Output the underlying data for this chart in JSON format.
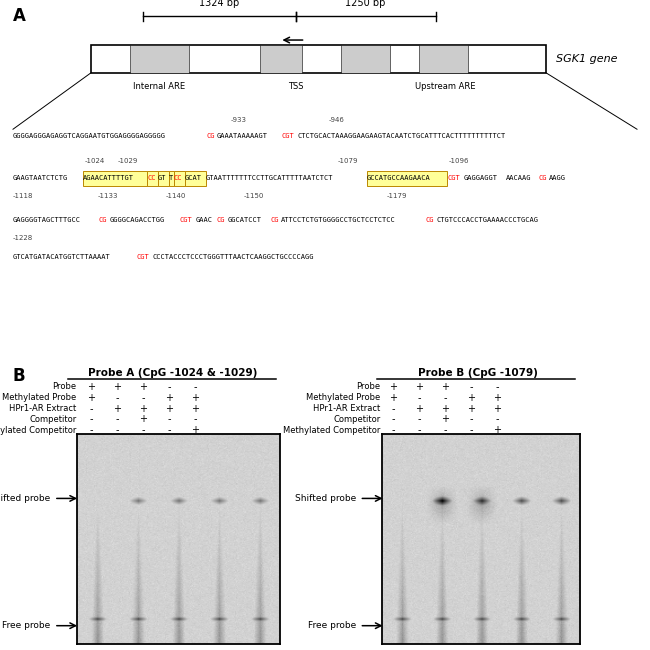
{
  "panel_A_label": "A",
  "panel_B_label": "B",
  "sgk1_gene_label": "SGK1 gene",
  "bp_left": "1324 bp",
  "bp_right": "1250 bp",
  "gene_labels": [
    "Internal ARE",
    "TSS",
    "Upstream ARE"
  ],
  "probe_A_title": "Probe A (CpG -1024 & -1029)",
  "probe_B_title": "Probe B (CpG -1079)",
  "row_labels": [
    "Probe",
    "Methylated Probe",
    "HPr1-AR Extract",
    "Competitor",
    "Methylated Competitor"
  ],
  "probe_A_cols": [
    [
      "+",
      "+",
      "+",
      "-",
      "-"
    ],
    [
      "+",
      "-",
      "-",
      "+",
      "+"
    ],
    [
      "-",
      "+",
      "+",
      "+",
      "+"
    ],
    [
      "-",
      "-",
      "+",
      "-",
      "-"
    ],
    [
      "-",
      "-",
      "-",
      "-",
      "+"
    ]
  ],
  "probe_B_cols": [
    [
      "+",
      "+",
      "+",
      "-",
      "-"
    ],
    [
      "+",
      "-",
      "-",
      "+",
      "+"
    ],
    [
      "-",
      "+",
      "+",
      "+",
      "+"
    ],
    [
      "-",
      "-",
      "+",
      "-",
      "-"
    ],
    [
      "-",
      "-",
      "-",
      "-",
      "+"
    ]
  ],
  "shifted_probe_label": "Shifted probe",
  "free_probe_label": "Free probe",
  "bg_color": "#ffffff",
  "red_color": "#ff0000",
  "box_color": "#ffff99",
  "box_border": "#cc8800"
}
